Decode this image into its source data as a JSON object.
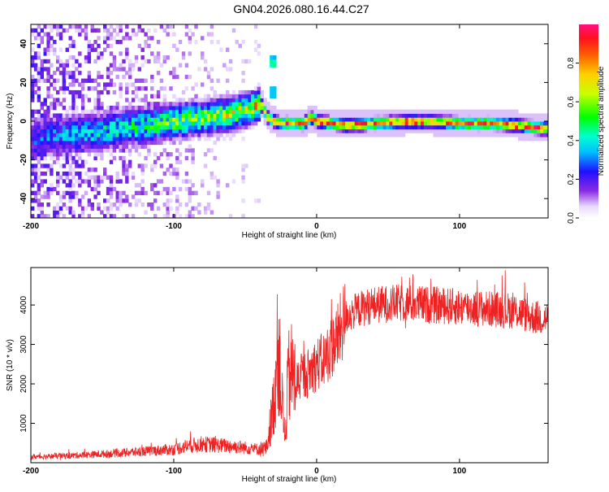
{
  "title": "GN04.2026.080.16.44.C27",
  "chart_data": [
    {
      "type": "heatmap",
      "title": "GN04.2026.080.16.44.C27",
      "xlabel": "Height of straight line (km)",
      "ylabel": "Frequency (Hz)",
      "xlim": [
        -200,
        162
      ],
      "ylim": [
        -50,
        50
      ],
      "x_ticks": [
        -200,
        -100,
        0,
        100
      ],
      "x_tick_labels": [
        "-200",
        "-100",
        "0",
        "100"
      ],
      "y_ticks": [
        -40,
        -20,
        0,
        20,
        40
      ],
      "y_tick_labels": [
        "-40",
        "-20",
        "0",
        "20",
        "40"
      ],
      "colorbar": {
        "label": "Normalized spectral amplitude",
        "range": [
          0,
          1
        ],
        "ticks": [
          0,
          0.2,
          0.4,
          0.6,
          0.8
        ],
        "tick_labels": [
          "0.0",
          "0.2",
          "0.4",
          "0.6",
          "0.8"
        ]
      },
      "ridge": {
        "description": "dominant frequency track",
        "x": [
          -200,
          -180,
          -160,
          -140,
          -120,
          -100,
          -80,
          -60,
          -50,
          -40,
          -35,
          -30,
          -25,
          -20,
          -10,
          -5,
          0,
          10,
          20,
          40,
          60,
          80,
          100,
          120,
          140,
          150,
          162
        ],
        "y": [
          -10,
          -8,
          -7,
          -5,
          -3,
          -1,
          1,
          3,
          5,
          8,
          1,
          -1,
          -2,
          -2,
          -2,
          1,
          -1,
          -2,
          -3,
          -2,
          -1,
          -1,
          -2,
          -2,
          -3,
          -4,
          -5
        ]
      },
      "grid": false
    },
    {
      "type": "line",
      "xlabel": "Height of straight line (km)",
      "ylabel": "SNR (10 * v/v)",
      "xlim": [
        -200,
        162
      ],
      "ylim": [
        0,
        4950
      ],
      "x_ticks": [
        -200,
        -100,
        0,
        100
      ],
      "x_tick_labels": [
        "-200",
        "-100",
        "0",
        "100"
      ],
      "y_ticks": [
        1000,
        2000,
        3000,
        4000
      ],
      "y_tick_labels": [
        "1000",
        "2000",
        "3000",
        "4000"
      ],
      "series": [
        {
          "name": "SNR",
          "color": "#ee2222",
          "x": [
            -200,
            -180,
            -160,
            -140,
            -120,
            -100,
            -90,
            -80,
            -60,
            -50,
            -40,
            -35,
            -30,
            -27,
            -25,
            -22,
            -20,
            -17,
            -15,
            -10,
            -5,
            0,
            5,
            10,
            15,
            20,
            30,
            40,
            60,
            80,
            100,
            120,
            140,
            150,
            162
          ],
          "y": [
            150,
            170,
            200,
            240,
            290,
            340,
            430,
            470,
            420,
            380,
            340,
            380,
            1500,
            3000,
            2000,
            500,
            2100,
            2300,
            2000,
            2200,
            2300,
            2500,
            2600,
            2900,
            3200,
            3700,
            3900,
            4000,
            4050,
            4000,
            3950,
            3900,
            3850,
            3700,
            3650
          ]
        }
      ],
      "grid": false
    }
  ]
}
